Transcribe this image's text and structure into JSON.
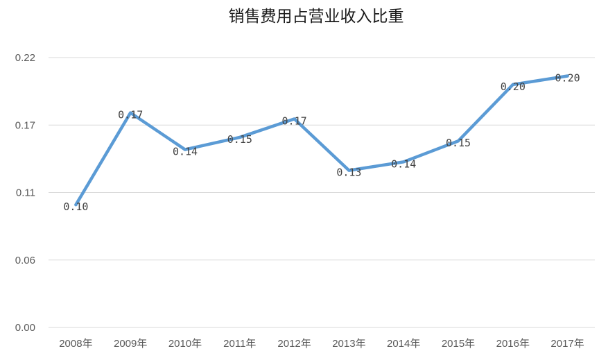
{
  "chart_data": {
    "type": "line",
    "title": "销售费用占营业收入比重",
    "xlabel": "",
    "ylabel": "",
    "categories": [
      "2008年",
      "2009年",
      "2010年",
      "2011年",
      "2012年",
      "2013年",
      "2014年",
      "2015年",
      "2016年",
      "2017年"
    ],
    "series": [
      {
        "values": [
          0.1,
          0.175,
          0.145,
          0.155,
          0.17,
          0.128,
          0.135,
          0.152,
          0.198,
          0.205
        ],
        "data_labels": [
          "0.10",
          "0.17",
          "0.14",
          "0.15",
          "0.17",
          "0.13",
          "0.14",
          "0.15",
          "0.20",
          "0.20"
        ],
        "color": "#5b9bd5"
      }
    ],
    "yticks": [
      "0.00",
      "0.06",
      "0.11",
      "0.17",
      "0.22"
    ],
    "ylim": [
      0,
      0.22
    ],
    "grid": true,
    "legend": "none"
  }
}
